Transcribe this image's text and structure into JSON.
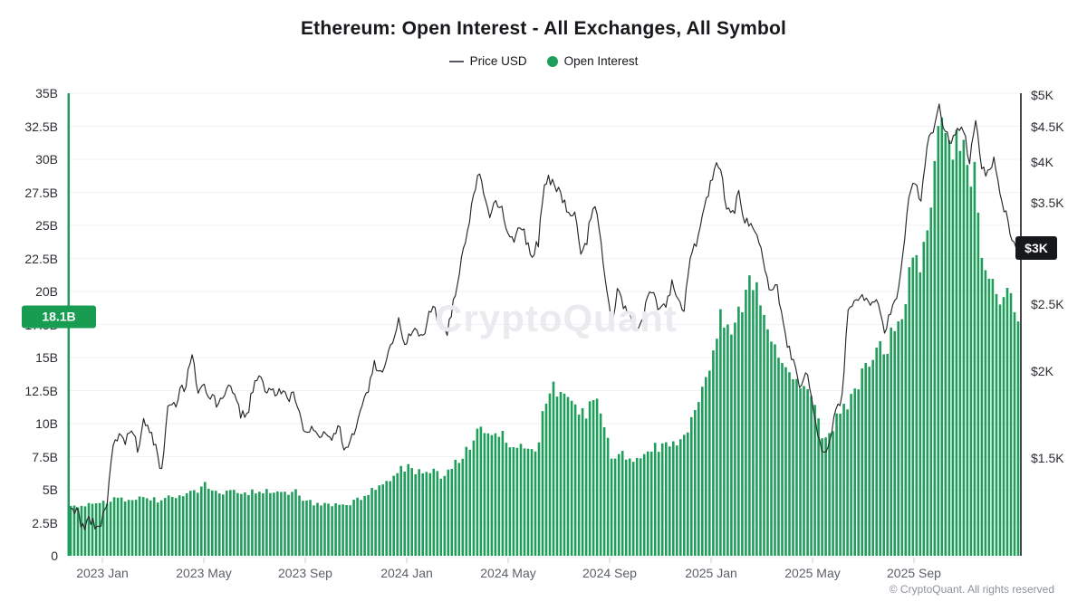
{
  "title": "Ethereum: Open Interest - All Exchanges, All Symbol",
  "legend": {
    "items": [
      {
        "label": "Price USD",
        "marker": "line",
        "color": "#55585e"
      },
      {
        "label": "Open Interest",
        "marker": "dot",
        "color": "#1e9e5a"
      }
    ]
  },
  "watermark": "CryptoQuant",
  "footer": "© CryptoQuant. All rights reserved",
  "colors": {
    "bars": "#1e9e5a",
    "left_axis_line": "#1e9e5a",
    "price_line": "#26272b",
    "gridline": "#f1f2f4",
    "right_axis_line": "#17181c",
    "oi_badge_bg": "#189c52",
    "price_badge_bg": "#17181c",
    "tick_mark": "#cbd0d6"
  },
  "left_axis": {
    "ticks": [
      "35B",
      "32.5B",
      "30B",
      "27.5B",
      "25B",
      "22.5B",
      "20B",
      "17.5B",
      "15B",
      "12.5B",
      "10B",
      "7.5B",
      "5B",
      "2.5B",
      "0"
    ],
    "badge": {
      "label": "18.1B",
      "value": 18.1
    }
  },
  "right_axis": {
    "ticks": [
      "$5K",
      "$4.5K",
      "$4K",
      "$3.5K",
      "$3K",
      "$2.5K",
      "$2K",
      "$1.5K"
    ],
    "tick_values": [
      5000,
      4500,
      4000,
      3500,
      3000,
      2500,
      2000,
      1500
    ],
    "badge": {
      "label": "$3K",
      "value": 3010
    }
  },
  "x_axis": {
    "labels": [
      "2023 Jan",
      "2023 May",
      "2023 Sep",
      "2024 Jan",
      "2024 May",
      "2024 Sep",
      "2025 Jan",
      "2025 May",
      "2025 Sep"
    ]
  },
  "chart_data": {
    "type": "mixed-bar-line",
    "title": "Ethereum: Open Interest - All Exchanges, All Symbol",
    "start_date": "2022-11-27",
    "interval_days": 7,
    "grid": "horizontal-only",
    "legend_position": "top-center",
    "ylim_left_billion": [
      0,
      35
    ],
    "ylim_right_usd": [
      1085,
      5000
    ],
    "right_scale": "log",
    "series": [
      {
        "name": "Price USD",
        "type": "line",
        "axis": "right",
        "unit": "USD",
        "values": [
          1270,
          1260,
          1190,
          1220,
          1200,
          1215,
          1290,
          1550,
          1630,
          1570,
          1665,
          1540,
          1695,
          1640,
          1560,
          1430,
          1800,
          1780,
          1860,
          1920,
          2100,
          1870,
          1900,
          1850,
          1800,
          1820,
          1900,
          1880,
          1740,
          1720,
          1880,
          1960,
          1870,
          1900,
          1860,
          1870,
          1830,
          1840,
          1670,
          1650,
          1630,
          1600,
          1630,
          1590,
          1680,
          1560,
          1560,
          1670,
          1800,
          1890,
          2050,
          2010,
          2060,
          2230,
          2350,
          2200,
          2280,
          2290,
          2220,
          2470,
          2450,
          2280,
          2290,
          2500,
          2780,
          3100,
          3430,
          3880,
          3640,
          3340,
          3500,
          3440,
          3150,
          3060,
          3260,
          3100,
          2930,
          3070,
          3750,
          3780,
          3680,
          3500,
          3420,
          3380,
          2980,
          3100,
          3480,
          3270,
          2750,
          2340,
          2600,
          2480,
          2430,
          2300,
          2350,
          2580,
          2630,
          2430,
          2470,
          2700,
          2520,
          2450,
          2960,
          3080,
          3350,
          3600,
          3920,
          3950,
          3400,
          3350,
          3620,
          3270,
          3290,
          3180,
          2870,
          2640,
          2690,
          2480,
          2200,
          2050,
          1910,
          2010,
          1820,
          1590,
          1520,
          1590,
          1790,
          1830,
          2480,
          2530,
          2560,
          2520,
          2500,
          2540,
          2250,
          2440,
          2540,
          2960,
          3590,
          3740,
          3480,
          4250,
          4450,
          4780,
          4390,
          4300,
          4500,
          4480,
          4020,
          4600,
          3900,
          3850,
          4020,
          3560,
          3400,
          3060,
          3010
        ]
      },
      {
        "name": "Open Interest",
        "type": "bar",
        "axis": "left",
        "unit": "billion USD",
        "values": [
          3.6,
          3.8,
          3.9,
          3.8,
          3.9,
          4.0,
          4.1,
          4.3,
          4.4,
          4.3,
          4.4,
          4.3,
          4.5,
          4.4,
          4.3,
          4.0,
          4.4,
          4.5,
          4.6,
          4.7,
          4.9,
          4.6,
          6.0,
          4.9,
          4.7,
          4.8,
          4.9,
          4.8,
          4.6,
          4.7,
          4.9,
          5.0,
          4.9,
          5.0,
          4.9,
          4.9,
          4.8,
          4.9,
          4.2,
          4.1,
          4.0,
          3.9,
          3.9,
          3.8,
          3.9,
          3.8,
          3.9,
          4.2,
          4.5,
          4.8,
          5.1,
          5.2,
          5.4,
          5.8,
          6.4,
          6.6,
          6.8,
          6.4,
          6.2,
          6.4,
          6.3,
          6.1,
          6.3,
          6.8,
          7.2,
          7.8,
          8.6,
          9.5,
          9.7,
          9.0,
          9.4,
          9.2,
          8.6,
          8.4,
          8.6,
          8.2,
          7.8,
          8.4,
          11.7,
          12.9,
          12.5,
          12.0,
          11.6,
          11.3,
          10.6,
          10.9,
          11.6,
          11.2,
          9.6,
          7.6,
          7.8,
          7.7,
          7.5,
          7.3,
          7.4,
          7.8,
          8.1,
          8.3,
          8.4,
          8.8,
          8.7,
          9.0,
          10.3,
          11.2,
          12.4,
          14.2,
          16.5,
          17.8,
          17.2,
          17.6,
          19.0,
          19.6,
          20.6,
          19.8,
          18.4,
          16.8,
          15.4,
          14.8,
          14.6,
          13.8,
          13.2,
          12.8,
          12.0,
          10.6,
          8.8,
          9.4,
          10.2,
          10.8,
          11.6,
          12.4,
          13.2,
          14.4,
          15.2,
          16.0,
          15.4,
          16.4,
          17.2,
          18.8,
          21.0,
          22.4,
          22.0,
          25.5,
          28.5,
          31.5,
          32.3,
          30.6,
          31.0,
          30.2,
          28.6,
          28.8,
          21.5,
          20.4,
          20.0,
          19.6,
          20.8,
          19.2,
          18.1
        ]
      }
    ]
  }
}
